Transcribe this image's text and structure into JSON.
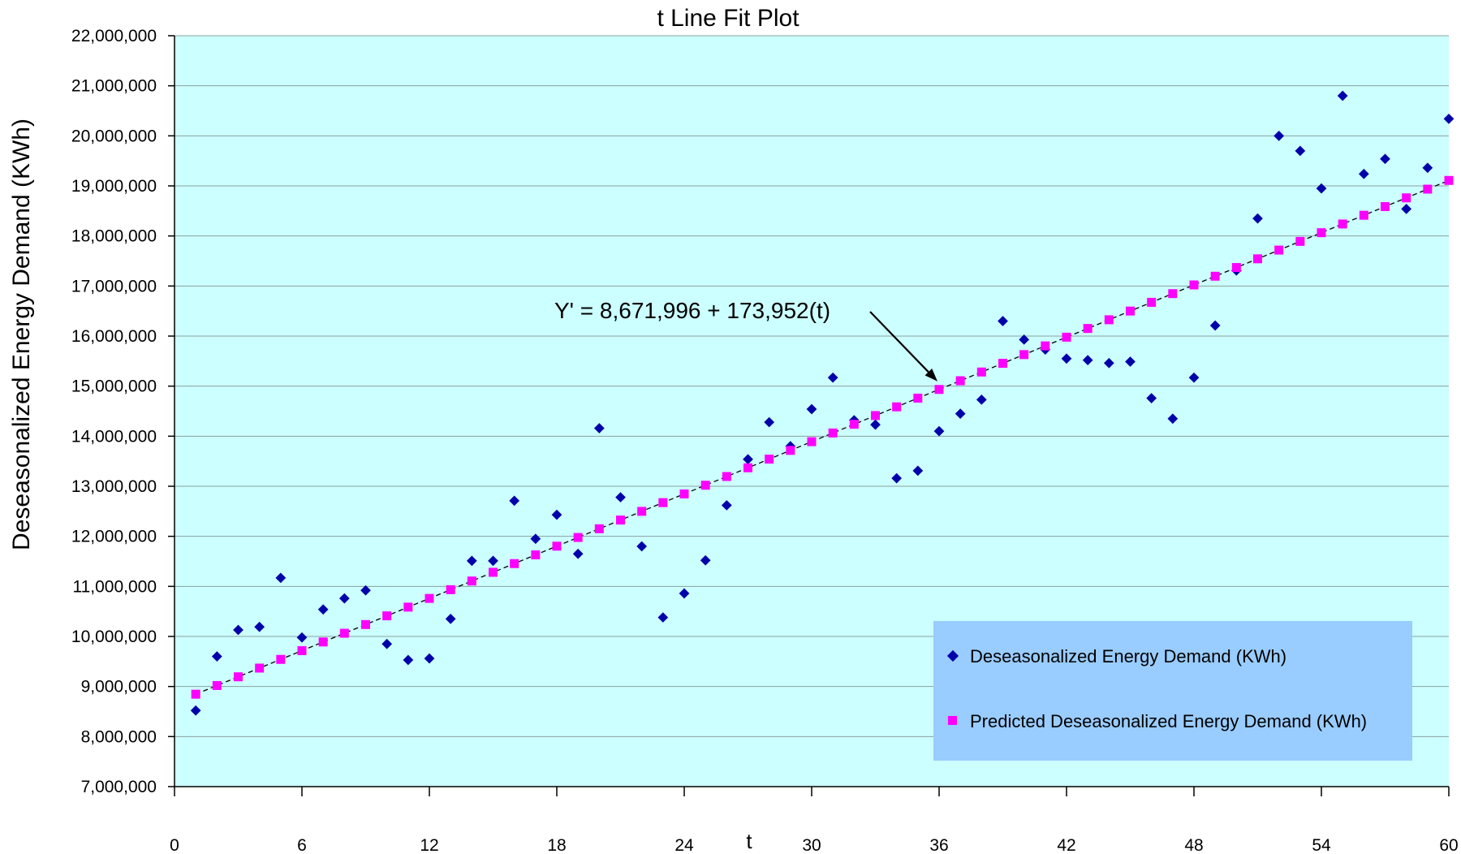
{
  "chart_data": {
    "type": "scatter",
    "title": "t Line Fit  Plot",
    "xlabel": "t",
    "ylabel": "Deseasonalized Energy Demand (KWh)",
    "xlim": [
      0,
      60
    ],
    "ylim": [
      7000000,
      22000000
    ],
    "x_ticks": [
      0,
      6,
      12,
      18,
      24,
      30,
      36,
      42,
      48,
      54,
      60
    ],
    "y_ticks": [
      7000000,
      8000000,
      9000000,
      10000000,
      11000000,
      12000000,
      13000000,
      14000000,
      15000000,
      16000000,
      17000000,
      18000000,
      19000000,
      20000000,
      21000000,
      22000000
    ],
    "x_tick_labels": [
      "0",
      "6",
      "12",
      "18",
      "24",
      "30",
      "36",
      "42",
      "48",
      "54",
      "60"
    ],
    "y_tick_labels": [
      "7,000,000",
      "8,000,000",
      "9,000,000",
      "10,000,000",
      "11,000,000",
      "12,000,000",
      "13,000,000",
      "14,000,000",
      "15,000,000",
      "16,000,000",
      "17,000,000",
      "18,000,000",
      "19,000,000",
      "20,000,000",
      "21,000,000",
      "22,000,000"
    ],
    "grid": "horizontal",
    "plot_background": "#ccffff",
    "legend_position": "bottom-right",
    "legend_background": "#99ccff",
    "x": [
      1,
      2,
      3,
      4,
      5,
      6,
      7,
      8,
      9,
      10,
      11,
      12,
      13,
      14,
      15,
      16,
      17,
      18,
      19,
      20,
      21,
      22,
      23,
      24,
      25,
      26,
      27,
      28,
      29,
      30,
      31,
      32,
      33,
      34,
      35,
      36,
      37,
      38,
      39,
      40,
      41,
      42,
      43,
      44,
      45,
      46,
      47,
      48,
      49,
      50,
      51,
      52,
      53,
      54,
      55,
      56,
      57,
      58,
      59,
      60
    ],
    "series": [
      {
        "name": "Deseasonalized Energy Demand (KWh)",
        "marker": "diamond",
        "color": "#0000aa",
        "values": [
          8520000,
          9600000,
          10130000,
          10190000,
          11170000,
          9980000,
          10540000,
          10760000,
          10920000,
          9850000,
          9530000,
          9560000,
          10350000,
          11510000,
          11510000,
          12710000,
          11950000,
          12430000,
          11650000,
          14160000,
          12780000,
          11800000,
          10380000,
          10860000,
          11520000,
          12620000,
          13540000,
          14280000,
          13800000,
          14540000,
          15170000,
          14320000,
          14230000,
          13160000,
          13310000,
          14100000,
          14450000,
          14730000,
          16300000,
          15930000,
          15730000,
          15550000,
          15520000,
          15460000,
          15490000,
          14760000,
          14350000,
          15170000,
          16210000,
          17310000,
          18350000,
          20000000,
          19700000,
          18950000,
          20800000,
          19240000,
          19540000,
          18540000,
          19360000,
          20340000
        ]
      },
      {
        "name": "Predicted Deseasonalized Energy Demand (KWh)",
        "marker": "square",
        "color": "#ff00ff",
        "values": [
          8845948,
          9019900,
          9193852,
          9367804,
          9541756,
          9715708,
          9889660,
          10063612,
          10237564,
          10411516,
          10585468,
          10759420,
          10933372,
          11107324,
          11281276,
          11455228,
          11629180,
          11803132,
          11977084,
          12151036,
          12324988,
          12498940,
          12672892,
          12846844,
          13020796,
          13194748,
          13368700,
          13542652,
          13716604,
          13890556,
          14064508,
          14238460,
          14412412,
          14586364,
          14760316,
          14934268,
          15108220,
          15282172,
          15456124,
          15630076,
          15804028,
          15977980,
          16151932,
          16325884,
          16499836,
          16673788,
          16847740,
          17021692,
          17195644,
          17369596,
          17543548,
          17717500,
          17891452,
          18065404,
          18239356,
          18413308,
          18587260,
          18761212,
          18935164,
          19109116
        ]
      }
    ],
    "annotations": [
      {
        "text": "Y' = 8,671,996 + 173,952(t)",
        "points_to_x": 36
      }
    ],
    "fit_line": {
      "intercept": 8671996,
      "slope": 173952,
      "style": "dashed",
      "color": "#000000"
    }
  }
}
